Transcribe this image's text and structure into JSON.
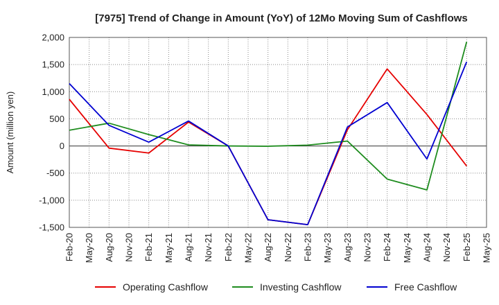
{
  "chart_data": {
    "type": "line",
    "title": "[7975]  Trend of Change in Amount (YoY) of 12Mo Moving Sum of Cashflows",
    "xlabel": "",
    "ylabel": "Amount (million yen)",
    "ylim": [
      -1500,
      2000
    ],
    "yticks": [
      -1500,
      -1000,
      -500,
      0,
      500,
      1000,
      1500,
      2000
    ],
    "ytick_labels": [
      "-1,500",
      "-1,000",
      "-500",
      "0",
      "500",
      "1,000",
      "1,500",
      "2,000"
    ],
    "categories": [
      "Feb-20",
      "May-20",
      "Aug-20",
      "Nov-20",
      "Feb-21",
      "May-21",
      "Aug-21",
      "Nov-21",
      "Feb-22",
      "May-22",
      "Aug-22",
      "Nov-22",
      "Feb-23",
      "May-23",
      "Aug-23",
      "Nov-23",
      "Feb-24",
      "May-24",
      "Aug-24",
      "Nov-24",
      "Feb-25",
      "May-25"
    ],
    "grid": true,
    "legend_position": "bottom",
    "series": [
      {
        "name": "Operating Cashflow",
        "color": "#e60000",
        "values": [
          860,
          null,
          -40,
          null,
          -130,
          null,
          440,
          null,
          0,
          null,
          -1360,
          null,
          -1450,
          null,
          300,
          null,
          1420,
          null,
          580,
          null,
          -370,
          null
        ]
      },
      {
        "name": "Investing Cashflow",
        "color": "#1e8c1e",
        "values": [
          290,
          null,
          420,
          null,
          210,
          null,
          20,
          null,
          0,
          null,
          -5,
          null,
          15,
          null,
          90,
          null,
          -610,
          null,
          -810,
          null,
          1920,
          null
        ]
      },
      {
        "name": "Free Cashflow",
        "color": "#0000d0",
        "values": [
          1150,
          null,
          380,
          null,
          70,
          null,
          460,
          null,
          0,
          null,
          -1360,
          null,
          -1450,
          null,
          350,
          null,
          800,
          null,
          -240,
          null,
          1550,
          null
        ]
      }
    ]
  }
}
